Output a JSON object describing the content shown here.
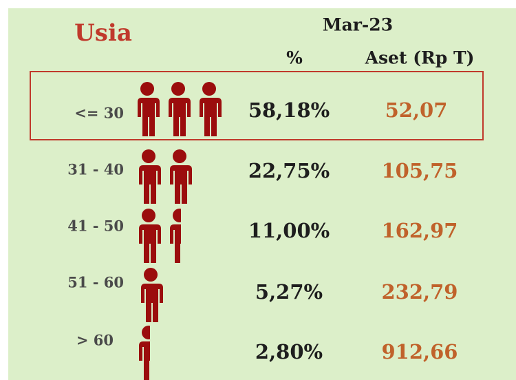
{
  "title": "Usia",
  "period": "Mar-23",
  "columns": [
    "%",
    "Aset (Rp T)"
  ],
  "rows": [
    {
      "age": "<= 30",
      "percent": "58,18%",
      "asset": "52,07"
    },
    {
      "age": "31 - 40",
      "percent": "22,75%",
      "asset": "105,75"
    },
    {
      "age": "41 - 50",
      "percent": "11,00%",
      "asset": "162,97"
    },
    {
      "age": "51 - 60",
      "percent": "5,27%",
      "asset": "232,79"
    },
    {
      "age": "> 60",
      "percent": "2,80%",
      "asset": "912,66"
    }
  ]
}
